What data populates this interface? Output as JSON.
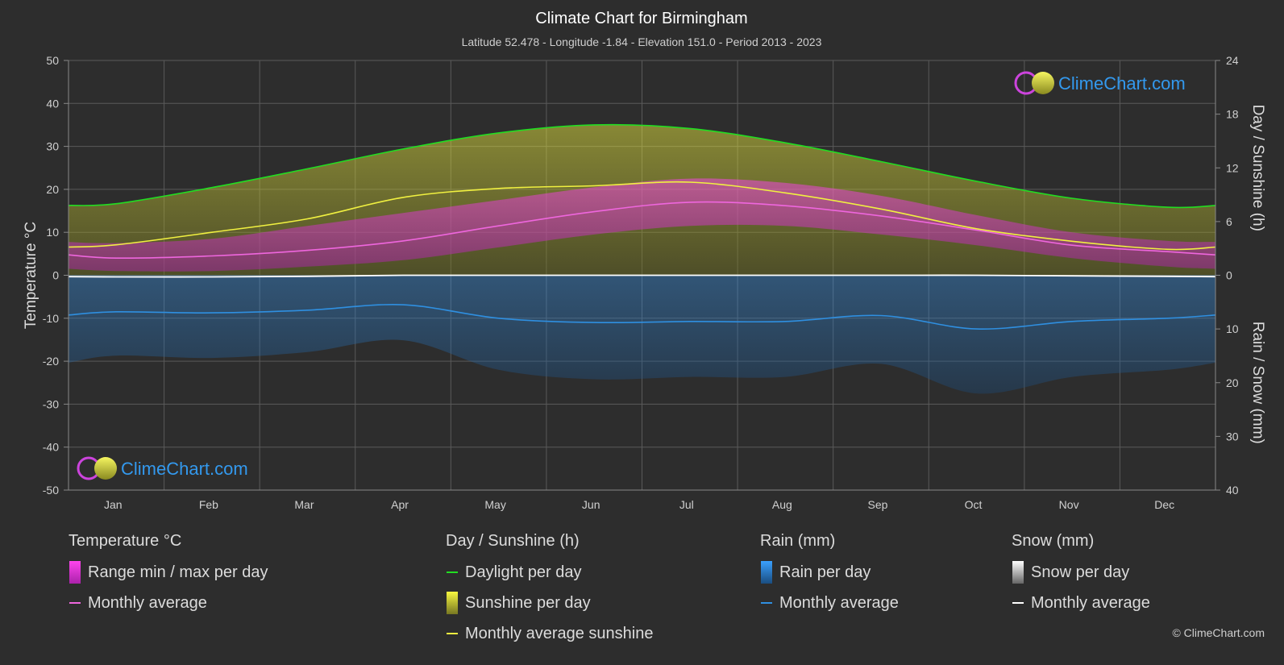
{
  "title": "Climate Chart for Birmingham",
  "subtitle": "Latitude 52.478 - Longitude -1.84 - Elevation 151.0 - Period 2013 - 2023",
  "watermark": "ClimeChart.com",
  "copyright": "© ClimeChart.com",
  "colors": {
    "background": "#2d2d2d",
    "grid": "#5a5a5a",
    "daylight": "#22dd22",
    "sunshine_avg": "#f0f040",
    "sunshine_fill": "#8a8a2a",
    "temp_avg": "#ee66dd",
    "temp_range": "#cc44bb",
    "rain_avg": "#2f8fe0",
    "rain_fill": "#2a5d86",
    "snow_avg": "#ffffff",
    "brand_text": "#3399ee"
  },
  "chart_data": {
    "type": "line",
    "categories": [
      "Jan",
      "Feb",
      "Mar",
      "Apr",
      "May",
      "Jun",
      "Jul",
      "Aug",
      "Sep",
      "Oct",
      "Nov",
      "Dec"
    ],
    "left_axis": {
      "label": "Temperature °C",
      "range": [
        -50,
        50
      ],
      "ticks": [
        50,
        40,
        30,
        20,
        10,
        0,
        -10,
        -20,
        -30,
        -40,
        -50
      ]
    },
    "right_axis_top": {
      "label": "Day / Sunshine (h)",
      "range": [
        0,
        24
      ],
      "ticks": [
        24,
        18,
        12,
        6,
        0
      ]
    },
    "right_axis_bottom": {
      "label": "Rain / Snow (mm)",
      "range": [
        0,
        40
      ],
      "ticks": [
        10,
        20,
        30,
        40
      ]
    },
    "series": [
      {
        "name": "Daylight per day",
        "unit": "h",
        "values": [
          8.0,
          9.8,
          11.9,
          14.1,
          15.9,
          16.8,
          16.4,
          14.8,
          12.7,
          10.5,
          8.6,
          7.6
        ]
      },
      {
        "name": "Monthly average sunshine",
        "unit": "h",
        "values": [
          3.4,
          4.8,
          6.3,
          8.7,
          9.7,
          10.0,
          10.4,
          9.2,
          7.4,
          5.2,
          3.8,
          2.9
        ]
      },
      {
        "name": "Monthly average",
        "group": "Temperature °C",
        "unit": "°C",
        "values": [
          4.0,
          4.5,
          5.8,
          8.0,
          11.5,
          14.8,
          17.0,
          16.2,
          13.8,
          10.5,
          7.0,
          5.5
        ]
      },
      {
        "name": "Monthly average",
        "group": "Rain (mm)",
        "unit": "mm",
        "values": [
          6.8,
          7.0,
          6.5,
          5.5,
          8.0,
          8.8,
          8.6,
          8.6,
          7.5,
          10.0,
          8.6,
          8.0
        ]
      },
      {
        "name": "Monthly average",
        "group": "Snow (mm)",
        "unit": "mm",
        "values": [
          0.3,
          0.3,
          0.2,
          0.0,
          0.0,
          0.0,
          0.0,
          0.0,
          0.0,
          0.0,
          0.1,
          0.2
        ]
      },
      {
        "name": "Range min / max per day",
        "unit": "°C",
        "min": [
          1.0,
          1.0,
          2.0,
          3.5,
          6.5,
          9.5,
          11.5,
          11.5,
          9.5,
          7.0,
          4.0,
          2.0
        ],
        "max": [
          7.5,
          8.5,
          11.5,
          14.5,
          17.5,
          20.5,
          22.5,
          21.5,
          18.5,
          14.0,
          10.0,
          8.0
        ]
      }
    ]
  },
  "legend": {
    "temperature": {
      "title": "Temperature °C",
      "items": [
        "Range min / max per day",
        "Monthly average"
      ]
    },
    "sunshine": {
      "title": "Day / Sunshine (h)",
      "items": [
        "Daylight per day",
        "Sunshine per day",
        "Monthly average sunshine"
      ]
    },
    "rain": {
      "title": "Rain (mm)",
      "items": [
        "Rain per day",
        "Monthly average"
      ]
    },
    "snow": {
      "title": "Snow (mm)",
      "items": [
        "Snow per day",
        "Monthly average"
      ]
    }
  }
}
